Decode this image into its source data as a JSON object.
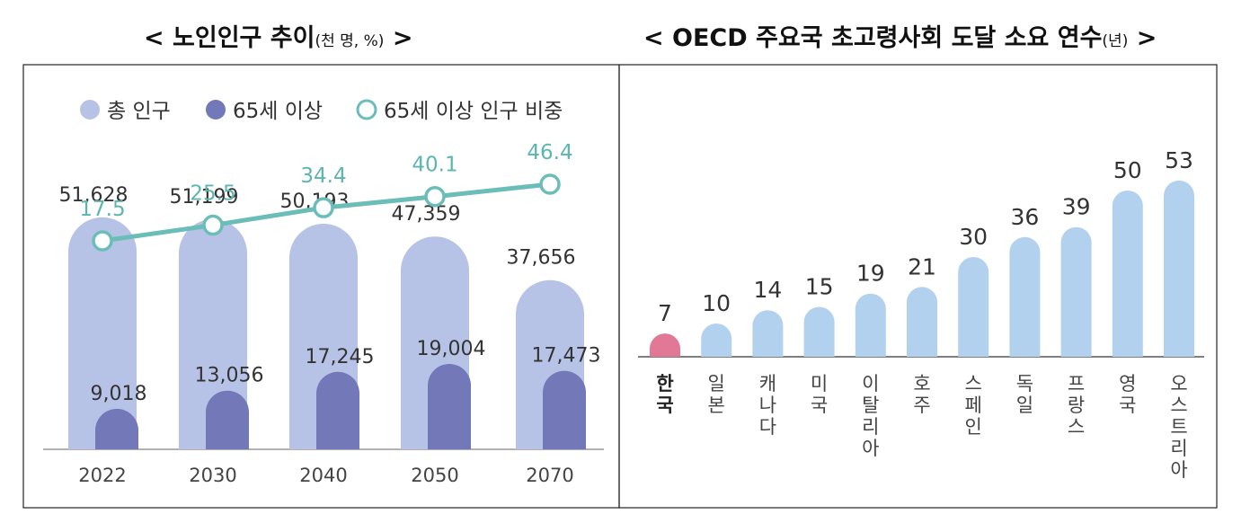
{
  "titles": {
    "left": {
      "open": "<",
      "main": "노인인구 추이",
      "unit": "(천 명, %)",
      "close": ">"
    },
    "right": {
      "open": "<",
      "main": "OECD 주요국 초고령사회 도달 소요 연수",
      "unit": "(년)",
      "close": ">"
    }
  },
  "colors": {
    "total": "#b7c3e6",
    "elderly": "#7379b8",
    "ratio_line": "#6bbdb8",
    "ratio_text": "#5db5af",
    "korea_bar": "#e07896",
    "oecd_bar": "#b2d1ef",
    "axis_text": "#444444"
  },
  "chart_data": [
    {
      "type": "bar",
      "title": "노인인구 추이",
      "unit": "천 명, %",
      "categories": [
        "2022",
        "2030",
        "2040",
        "2050",
        "2070"
      ],
      "legend": [
        "총 인구",
        "65세 이상",
        "65세 이상 인구 비중"
      ],
      "legend_position": "top-left",
      "series": [
        {
          "name": "총 인구",
          "values": [
            51628,
            51199,
            50193,
            47359,
            37656
          ],
          "labels": [
            "51,628",
            "51,199",
            "50,193",
            "47,359",
            "37,656"
          ]
        },
        {
          "name": "65세 이상",
          "values": [
            9018,
            13056,
            17245,
            19004,
            17473
          ],
          "labels": [
            "9,018",
            "13,056",
            "17,245",
            "19,004",
            "17,473"
          ]
        }
      ],
      "line_series": {
        "name": "65세 이상 인구 비중",
        "type": "line",
        "values": [
          17.5,
          25.5,
          34.4,
          40.1,
          46.4
        ],
        "labels": [
          "17.5",
          "25.5",
          "34.4",
          "40.1",
          "46.4"
        ]
      },
      "ylim": [
        0,
        60000
      ],
      "ratio_ylim": [
        0,
        80
      ],
      "grid": false
    },
    {
      "type": "bar",
      "title": "OECD 주요국 초고령사회 도달 소요 연수",
      "unit": "년",
      "categories": [
        "한국",
        "일본",
        "캐나다",
        "미국",
        "이탈리아",
        "호주",
        "스페인",
        "독일",
        "프랑스",
        "영국",
        "오스트리아"
      ],
      "values": [
        7,
        10,
        14,
        15,
        19,
        21,
        30,
        36,
        39,
        50,
        53
      ],
      "highlight": "한국",
      "ylim": [
        0,
        60
      ],
      "grid": false
    }
  ]
}
